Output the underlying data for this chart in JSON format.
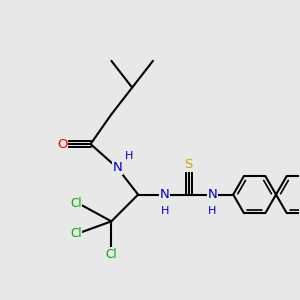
{
  "bg_color": "#e8e8e8",
  "bond_color": "#000000",
  "bond_lw": 1.5,
  "label_colors": {
    "O": "#ff0000",
    "N": "#0000cc",
    "S": "#ccaa00",
    "Cl": "#00aa00",
    "H": "#0000cc"
  },
  "figsize": [
    3.0,
    3.0
  ],
  "dpi": 100
}
